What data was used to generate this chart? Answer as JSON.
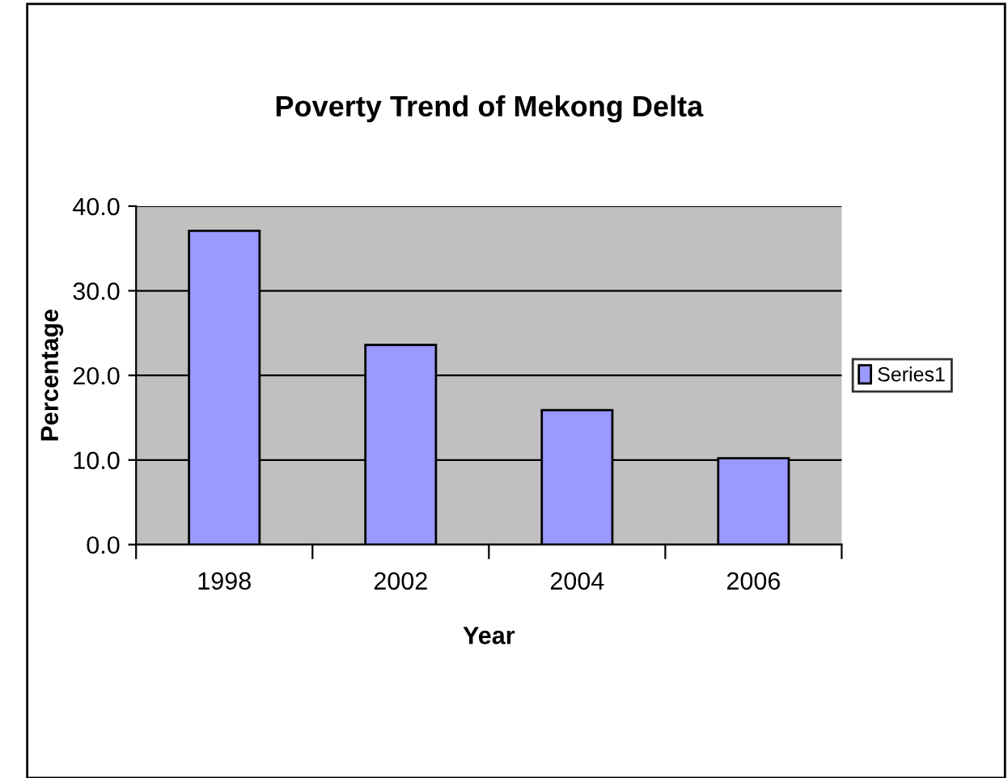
{
  "chart_data": {
    "type": "bar",
    "title": "Poverty Trend of Mekong Delta",
    "xlabel": "Year",
    "ylabel": "Percentage",
    "categories": [
      "1998",
      "2002",
      "2004",
      "2006"
    ],
    "series": [
      {
        "name": "Series1",
        "color": "#9999ff",
        "values": [
          37.1,
          23.6,
          15.9,
          10.2
        ]
      }
    ],
    "ylim": [
      0,
      40
    ],
    "yticks": [
      {
        "value": 0,
        "label": "0.0"
      },
      {
        "value": 10,
        "label": "10.0"
      },
      {
        "value": 20,
        "label": "20.0"
      },
      {
        "value": 30,
        "label": "30.0"
      },
      {
        "value": 40,
        "label": "40.0"
      }
    ],
    "grid": "y",
    "legend": "right"
  }
}
